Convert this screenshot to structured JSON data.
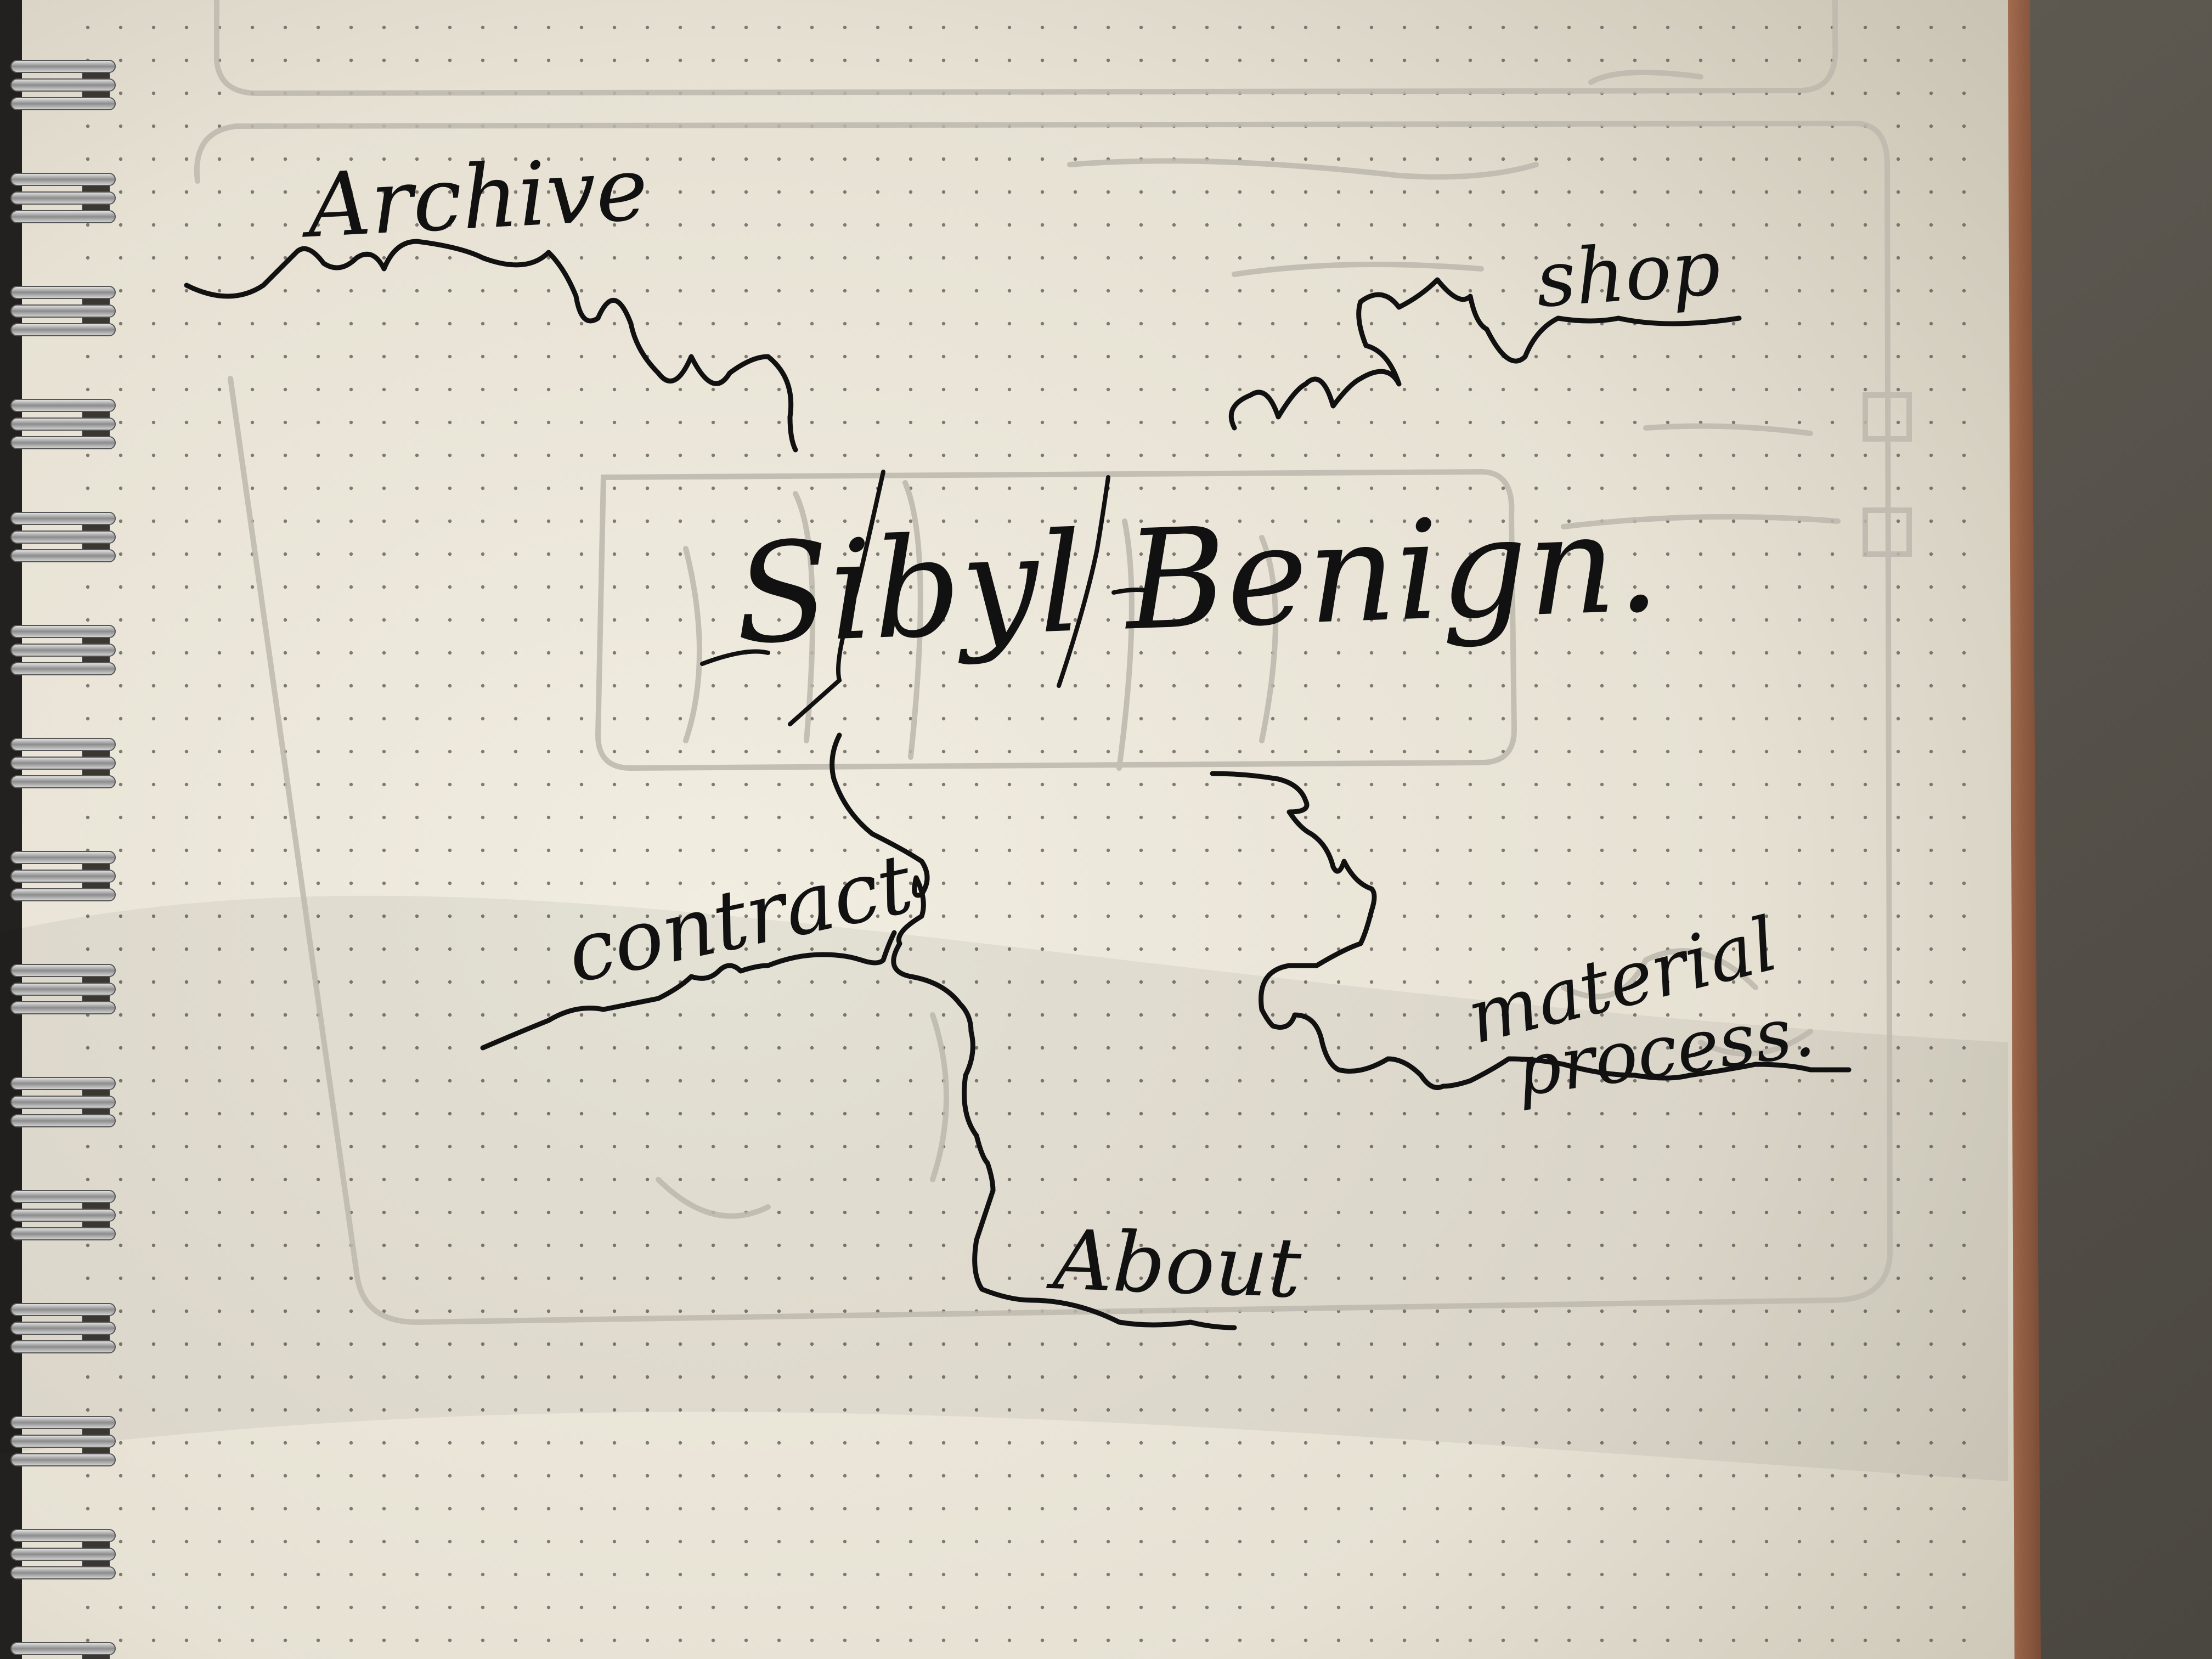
{
  "sketch": {
    "title": "Sibyl Benign.",
    "labels": {
      "archive": "Archive",
      "shop": "shop",
      "contract": "contract",
      "material_process_line1": "material",
      "material_process_line2": "process.",
      "about": "About"
    }
  },
  "colors": {
    "paper": "#ebe6d8",
    "ink": "#111111",
    "pencil": "#bdb8ad",
    "binding": "#2a2826",
    "dots": "#5a5650"
  }
}
